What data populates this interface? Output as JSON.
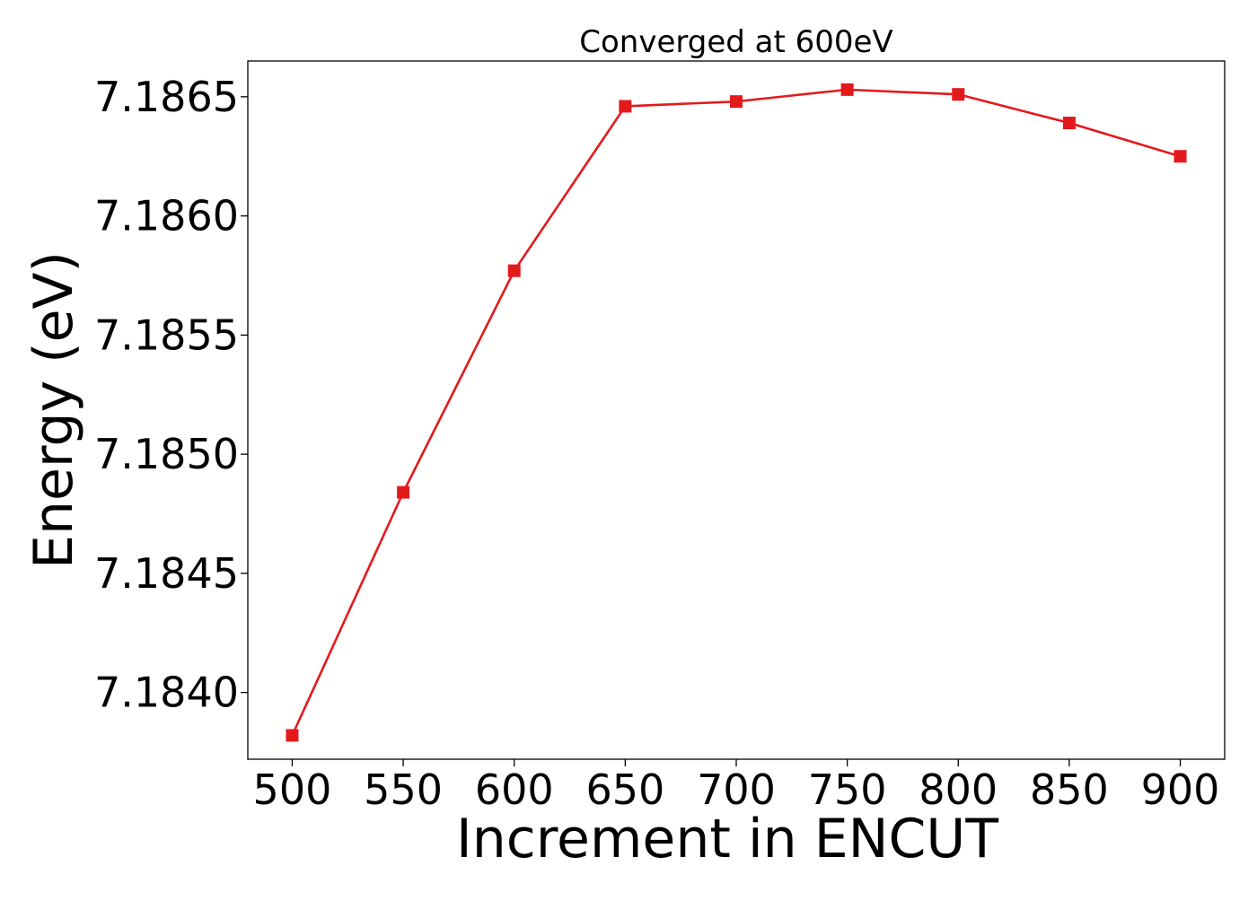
{
  "chart_data": {
    "type": "line",
    "title": "Converged at 600eV",
    "xlabel": "Increment in ENCUT",
    "ylabel": "Energy (eV)",
    "x": [
      500,
      550,
      600,
      650,
      700,
      750,
      800,
      850,
      900
    ],
    "xticks": [
      "500",
      "550",
      "600",
      "650",
      "700",
      "750",
      "800",
      "850",
      "900"
    ],
    "yticks": [
      "7.1840",
      "7.1845",
      "7.1850",
      "7.1855",
      "7.1860",
      "7.1865"
    ],
    "ytick_values": [
      7.184,
      7.1845,
      7.185,
      7.1855,
      7.186,
      7.1865
    ],
    "xlim": [
      480,
      920
    ],
    "ylim": [
      7.18372,
      7.18665
    ],
    "series": [
      {
        "values": [
          7.18382,
          7.18484,
          7.18577,
          7.18646,
          7.18648,
          7.18653,
          7.18651,
          7.18639,
          7.18625
        ],
        "color": "#e31a1c",
        "marker": "square"
      }
    ],
    "grid": false,
    "legend": "none"
  }
}
